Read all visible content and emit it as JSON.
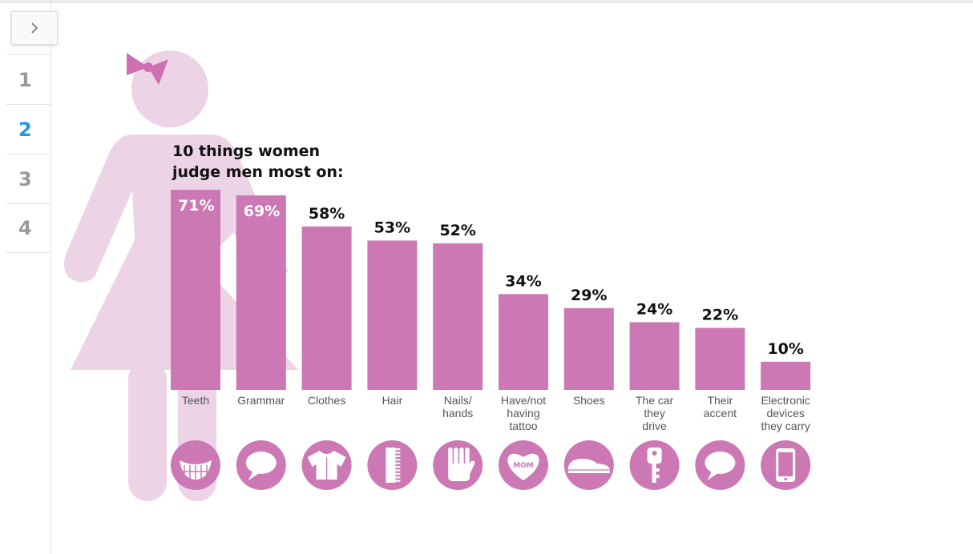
{
  "sidebar": {
    "toggle_icon": "chevron-right-icon",
    "items": [
      {
        "label": "1",
        "active": false
      },
      {
        "label": "2",
        "active": true
      },
      {
        "label": "3",
        "active": false
      },
      {
        "label": "4",
        "active": false
      }
    ],
    "active_color": "#2196e8"
  },
  "colors": {
    "bar": "#cb78b4",
    "figure": "#ecd3e6",
    "bow": "#cd6fb2",
    "icon_circle": "#cb78b4"
  },
  "chart_data": {
    "type": "bar",
    "title_lines": [
      "10 things women",
      "judge men most on:"
    ],
    "categories": [
      [
        "Teeth"
      ],
      [
        "Grammar"
      ],
      [
        "Clothes"
      ],
      [
        "Hair"
      ],
      [
        "Nails/",
        "hands"
      ],
      [
        "Have/not",
        "having",
        "tattoo"
      ],
      [
        "Shoes"
      ],
      [
        "The car",
        "they",
        "drive"
      ],
      [
        "Their",
        "accent"
      ],
      [
        "Electronic",
        "devices",
        "they carry"
      ]
    ],
    "values": [
      71,
      69,
      58,
      53,
      52,
      34,
      29,
      24,
      22,
      10
    ],
    "value_labels": [
      "71%",
      "69%",
      "58%",
      "53%",
      "52%",
      "34%",
      "29%",
      "24%",
      "22%",
      "10%"
    ],
    "icons": [
      "teeth-icon",
      "speech-bubble-icon",
      "shirt-icon",
      "comb-icon",
      "hand-icon",
      "mom-heart-tattoo-icon",
      "shoe-icon",
      "car-key-icon",
      "speech-bubble-icon",
      "phone-icon"
    ],
    "icon_texts": {
      "tattoo": "MOM"
    },
    "ylim": [
      0,
      100
    ],
    "grid": false,
    "legend": "none"
  }
}
